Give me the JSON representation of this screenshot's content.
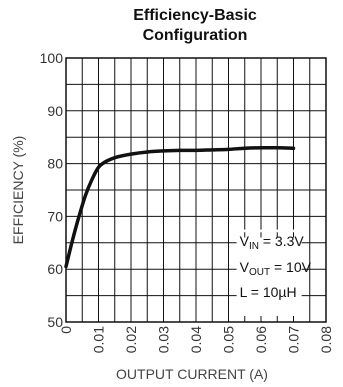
{
  "chart_data": {
    "type": "line",
    "title_lines": [
      "Efficiency-Basic",
      "Configuration"
    ],
    "xlabel": "OUTPUT CURRENT (A)",
    "ylabel": "EFFICIENCY (%)",
    "xlim": [
      0,
      0.08
    ],
    "ylim": [
      50,
      100
    ],
    "x_ticks": [
      "0",
      "0.01",
      "0.02",
      "0.03",
      "0.04",
      "0.05",
      "0.06",
      "0.07",
      "0.08"
    ],
    "y_ticks": [
      "50",
      "60",
      "70",
      "80",
      "90",
      "100"
    ],
    "grid": true,
    "series": [
      {
        "x": [
          0.0,
          0.002,
          0.004,
          0.006,
          0.008,
          0.01,
          0.012,
          0.014,
          0.016,
          0.02,
          0.025,
          0.03,
          0.035,
          0.04,
          0.045,
          0.05,
          0.055,
          0.06,
          0.065,
          0.07
        ],
        "y": [
          60.5,
          65.5,
          70.0,
          74.0,
          77.0,
          79.3,
          80.3,
          80.9,
          81.3,
          81.8,
          82.2,
          82.4,
          82.5,
          82.5,
          82.6,
          82.7,
          82.9,
          83.0,
          83.0,
          82.9
        ]
      }
    ],
    "annotations": [
      {
        "main": "V",
        "sub": "IN",
        "rest": " = 3.3V"
      },
      {
        "main": "V",
        "sub": "OUT",
        "rest": " = 10V"
      },
      {
        "main": "L = 10",
        "sub": "",
        "rest": "µH"
      }
    ],
    "colors": {
      "curve": "#111111",
      "grid": "#111111",
      "frame": "#111111"
    }
  }
}
